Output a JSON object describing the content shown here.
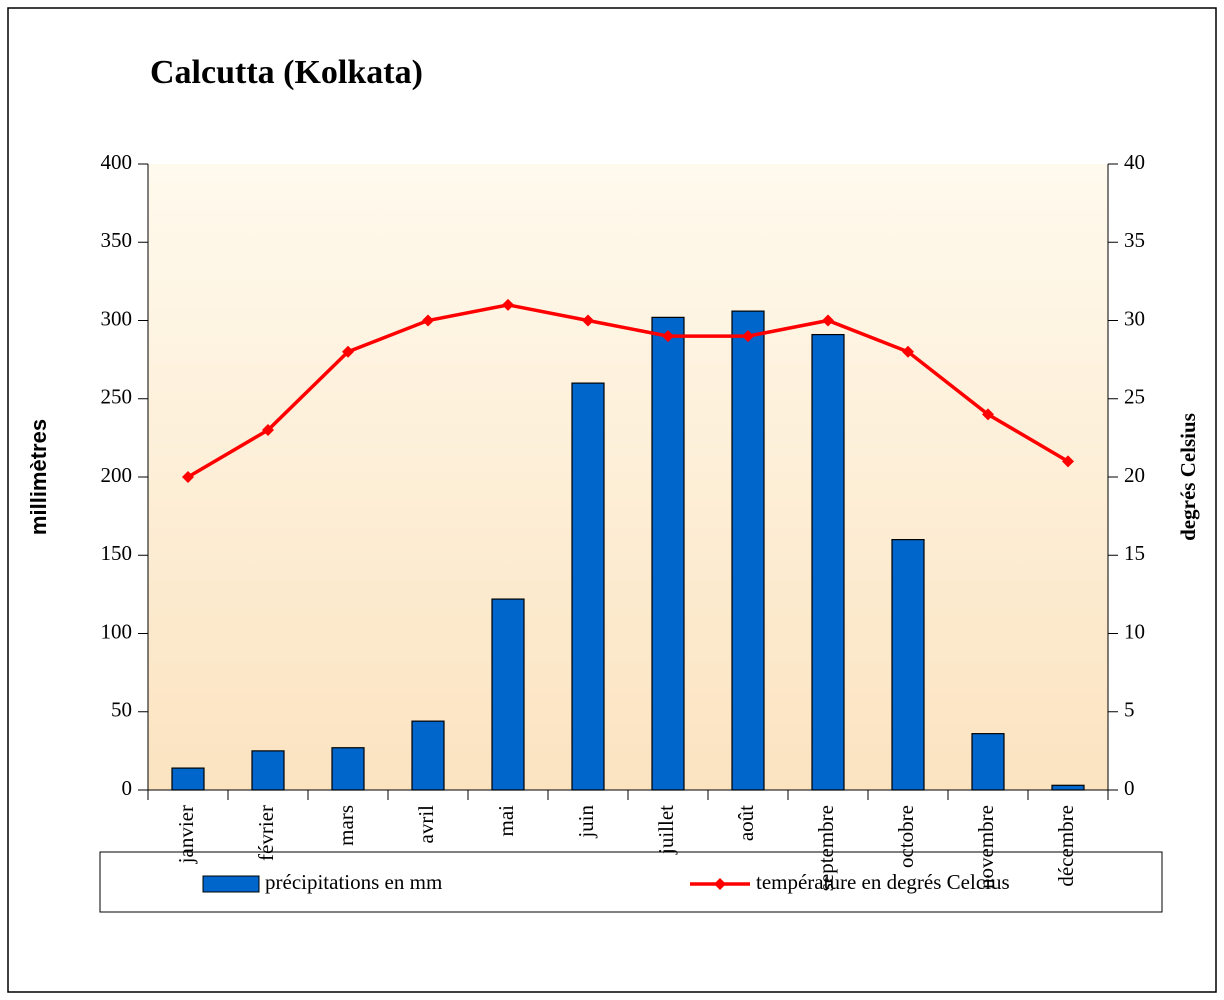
{
  "chart_data": {
    "type": "bar",
    "title": "Calcutta (Kolkata)",
    "y_label": "millimètres",
    "y2_label": "degrés Celsius",
    "categories": [
      "janvier",
      "février",
      "mars",
      "avril",
      "mai",
      "juin",
      "juillet",
      "août",
      "septembre",
      "octobre",
      "novembre",
      "décembre"
    ],
    "series": [
      {
        "name": "précipitations en mm",
        "type": "bar",
        "color": "#0066cc",
        "values": [
          14,
          25,
          27,
          44,
          122,
          260,
          302,
          306,
          291,
          160,
          36,
          3
        ]
      },
      {
        "name": "température en degrés Celcius",
        "type": "line",
        "axis": "y2",
        "color": "#ff0000",
        "values": [
          20,
          23,
          28,
          30,
          31,
          30,
          29,
          29,
          30,
          28,
          24,
          21
        ]
      }
    ],
    "ylim": [
      0,
      400
    ],
    "yticks": [
      0,
      50,
      100,
      150,
      200,
      250,
      300,
      350,
      400
    ],
    "y2lim": [
      0,
      40
    ],
    "y2ticks": [
      0,
      5,
      10,
      15,
      20,
      25,
      30,
      35,
      40
    ],
    "legend": "bottom"
  }
}
